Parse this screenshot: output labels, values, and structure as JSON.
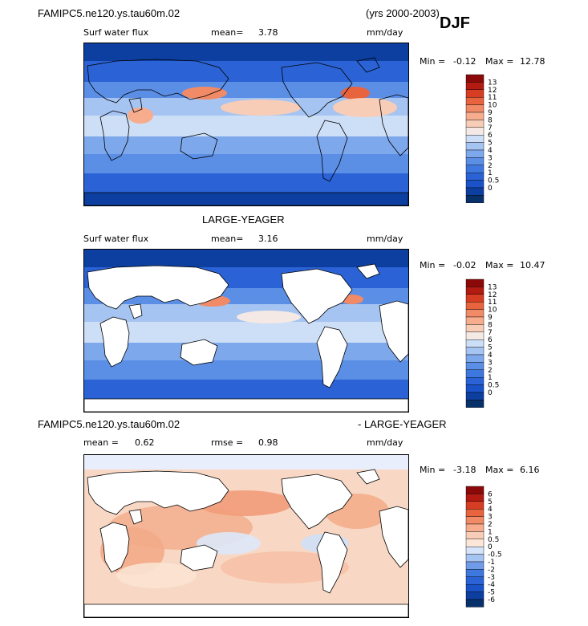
{
  "header": {
    "case_name": "FAMIPC5.ne120.ys.tau60m.02",
    "years": "(yrs 2000-2003)",
    "season": "DJF"
  },
  "panels": [
    {
      "id": "top",
      "variable": "Surf water flux",
      "stat_label": "mean=",
      "stat_value": "3.78",
      "units": "mm/day",
      "min_label": "Min =",
      "min_value": "-0.12",
      "max_label": "Max =",
      "max_value": "12.78",
      "land_masked": false
    },
    {
      "id": "middle",
      "title": "LARGE-YEAGER",
      "variable": "Surf water flux",
      "stat_label": "mean=",
      "stat_value": "3.16",
      "units": "mm/day",
      "min_label": "Min =",
      "min_value": "-0.02",
      "max_label": "Max =",
      "max_value": "10.47",
      "land_masked": true
    },
    {
      "id": "diff",
      "title_left": "FAMIPC5.ne120.ys.tau60m.02",
      "title_right": "- LARGE-YEAGER",
      "mean_label": "mean =",
      "mean_value": "0.62",
      "rmse_label": "rmse =",
      "rmse_value": "0.98",
      "units": "mm/day",
      "min_label": "Min =",
      "min_value": "-3.18",
      "max_label": "Max =",
      "max_value": "6.16",
      "land_masked": true
    }
  ],
  "chart_data": [
    {
      "type": "heatmap",
      "title": "Surf water flux",
      "units": "mm/day",
      "mean": 3.78,
      "min": -0.12,
      "max": 12.78,
      "colorbar_levels": [
        "0",
        "0.5",
        "1",
        "2",
        "3",
        "4",
        "5",
        "6",
        "7",
        "8",
        "9",
        "10",
        "11",
        "12",
        "13"
      ],
      "colorbar_colors": [
        "#08306b",
        "#0d3fa0",
        "#1a52c8",
        "#2b63d6",
        "#3e78de",
        "#5b8fe6",
        "#7ea8ec",
        "#a5c4f2",
        "#cddff7",
        "#f4e9e4",
        "#f8cdb8",
        "#f6ac8d",
        "#f18a66",
        "#e8643f",
        "#d63d22",
        "#b21a12",
        "#8b0a09"
      ]
    },
    {
      "type": "heatmap",
      "title": "LARGE-YEAGER",
      "units": "mm/day",
      "mean": 3.16,
      "min": -0.02,
      "max": 10.47,
      "colorbar_levels": [
        "0",
        "0.5",
        "1",
        "2",
        "3",
        "4",
        "5",
        "6",
        "7",
        "8",
        "9",
        "10",
        "11",
        "12",
        "13"
      ],
      "colorbar_colors": [
        "#08306b",
        "#0d3fa0",
        "#1a52c8",
        "#2b63d6",
        "#3e78de",
        "#5b8fe6",
        "#7ea8ec",
        "#a5c4f2",
        "#cddff7",
        "#f4e9e4",
        "#f8cdb8",
        "#f6ac8d",
        "#f18a66",
        "#e8643f",
        "#d63d22",
        "#b21a12",
        "#8b0a09"
      ]
    },
    {
      "type": "heatmap",
      "title": "FAMIPC5.ne120.ys.tau60m.02 - LARGE-YEAGER",
      "units": "mm/day",
      "mean": 0.62,
      "rmse": 0.98,
      "min": -3.18,
      "max": 6.16,
      "colorbar_levels": [
        "-6",
        "-5",
        "-4",
        "-3",
        "-2",
        "-1",
        "-0.5",
        "0",
        "0.5",
        "1",
        "2",
        "3",
        "4",
        "5",
        "6"
      ],
      "colorbar_colors": [
        "#08306b",
        "#0d3fa0",
        "#1a52c8",
        "#2b63d6",
        "#3e78de",
        "#6f9be8",
        "#a5c4f2",
        "#d5e4f8",
        "#fbe6d8",
        "#f8cdb8",
        "#f6ac8d",
        "#f18a66",
        "#e8643f",
        "#d63d22",
        "#b21a12",
        "#8b0a09"
      ]
    }
  ]
}
